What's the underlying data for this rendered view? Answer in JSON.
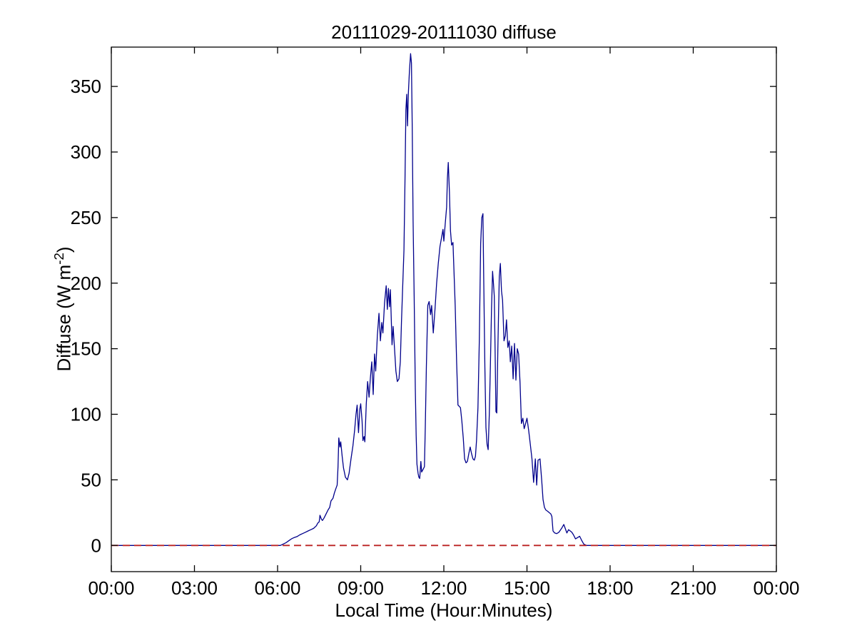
{
  "chart_data": {
    "type": "line",
    "title": "20111029-20111030 diffuse",
    "xlabel": "Local Time (Hour:Minutes)",
    "ylabel": "Diffuse (W m-2)",
    "ylabel_parts": {
      "main": "Diffuse (W m",
      "sup": "-2",
      "end": ")"
    },
    "xlim": [
      0,
      24
    ],
    "ylim": [
      -20,
      380
    ],
    "x_ticks_hours": [
      0,
      3,
      6,
      9,
      12,
      15,
      18,
      21,
      24
    ],
    "x_tick_labels": [
      "00:00",
      "03:00",
      "06:00",
      "09:00",
      "12:00",
      "15:00",
      "18:00",
      "21:00",
      "00:00"
    ],
    "y_ticks": [
      0,
      50,
      100,
      150,
      200,
      250,
      300,
      350
    ],
    "grid": false,
    "legend": "none",
    "colors": {
      "diffuse_line": "#00008B",
      "zero_reference_line": "#BB2222",
      "axis": "#000000",
      "background": "#FFFFFF"
    },
    "series": [
      {
        "name": "diffuse",
        "style": "solid",
        "color": "#00008B",
        "points": [
          [
            0,
            0
          ],
          [
            0.5,
            0
          ],
          [
            1,
            0
          ],
          [
            1.5,
            0
          ],
          [
            2,
            0
          ],
          [
            2.5,
            0
          ],
          [
            3,
            0
          ],
          [
            3.5,
            0
          ],
          [
            4,
            0
          ],
          [
            4.5,
            0
          ],
          [
            5,
            0
          ],
          [
            5.5,
            0
          ],
          [
            5.8,
            0
          ],
          [
            6.0,
            0
          ],
          [
            6.1,
            0
          ],
          [
            6.2,
            1
          ],
          [
            6.3,
            2
          ],
          [
            6.4,
            3.5
          ],
          [
            6.5,
            5
          ],
          [
            6.6,
            6
          ],
          [
            6.7,
            6.7
          ],
          [
            6.8,
            8
          ],
          [
            6.9,
            9
          ],
          [
            7.0,
            10
          ],
          [
            7.1,
            11
          ],
          [
            7.2,
            12
          ],
          [
            7.3,
            13
          ],
          [
            7.4,
            15
          ],
          [
            7.45,
            17
          ],
          [
            7.5,
            18
          ],
          [
            7.53,
            23
          ],
          [
            7.58,
            20
          ],
          [
            7.62,
            19
          ],
          [
            7.68,
            21
          ],
          [
            7.75,
            24
          ],
          [
            7.82,
            27
          ],
          [
            7.88,
            29
          ],
          [
            7.93,
            34
          ],
          [
            8.0,
            36
          ],
          [
            8.05,
            40
          ],
          [
            8.1,
            43
          ],
          [
            8.15,
            46
          ],
          [
            8.18,
            60
          ],
          [
            8.21,
            82
          ],
          [
            8.25,
            75
          ],
          [
            8.28,
            79
          ],
          [
            8.33,
            68
          ],
          [
            8.38,
            59
          ],
          [
            8.45,
            52
          ],
          [
            8.52,
            50
          ],
          [
            8.58,
            55
          ],
          [
            8.65,
            66
          ],
          [
            8.72,
            76
          ],
          [
            8.78,
            88
          ],
          [
            8.83,
            100
          ],
          [
            8.87,
            107
          ],
          [
            8.92,
            86
          ],
          [
            8.97,
            104
          ],
          [
            9.0,
            108
          ],
          [
            9.05,
            95
          ],
          [
            9.08,
            80
          ],
          [
            9.12,
            83
          ],
          [
            9.15,
            79
          ],
          [
            9.2,
            108
          ],
          [
            9.25,
            125
          ],
          [
            9.3,
            113
          ],
          [
            9.35,
            128
          ],
          [
            9.4,
            140
          ],
          [
            9.45,
            115
          ],
          [
            9.5,
            146
          ],
          [
            9.54,
            133
          ],
          [
            9.6,
            160
          ],
          [
            9.66,
            177
          ],
          [
            9.71,
            156
          ],
          [
            9.76,
            170
          ],
          [
            9.8,
            162
          ],
          [
            9.86,
            185
          ],
          [
            9.92,
            198
          ],
          [
            9.96,
            180
          ],
          [
            10.0,
            196
          ],
          [
            10.04,
            182
          ],
          [
            10.07,
            195
          ],
          [
            10.13,
            153
          ],
          [
            10.17,
            167
          ],
          [
            10.22,
            150
          ],
          [
            10.27,
            133
          ],
          [
            10.32,
            125
          ],
          [
            10.38,
            127
          ],
          [
            10.43,
            140
          ],
          [
            10.47,
            170
          ],
          [
            10.52,
            200
          ],
          [
            10.56,
            225
          ],
          [
            10.6,
            280
          ],
          [
            10.63,
            332
          ],
          [
            10.66,
            344
          ],
          [
            10.69,
            320
          ],
          [
            10.72,
            345
          ],
          [
            10.76,
            362
          ],
          [
            10.8,
            375
          ],
          [
            10.83,
            368
          ],
          [
            10.86,
            319
          ],
          [
            10.89,
            248
          ],
          [
            10.93,
            190
          ],
          [
            10.97,
            120
          ],
          [
            11.0,
            84
          ],
          [
            11.03,
            62
          ],
          [
            11.07,
            55
          ],
          [
            11.1,
            52
          ],
          [
            11.13,
            51
          ],
          [
            11.17,
            64
          ],
          [
            11.2,
            56
          ],
          [
            11.25,
            58
          ],
          [
            11.3,
            60
          ],
          [
            11.33,
            90
          ],
          [
            11.37,
            136
          ],
          [
            11.42,
            183
          ],
          [
            11.47,
            186
          ],
          [
            11.52,
            176
          ],
          [
            11.56,
            183
          ],
          [
            11.62,
            162
          ],
          [
            11.68,
            180
          ],
          [
            11.74,
            200
          ],
          [
            11.8,
            215
          ],
          [
            11.86,
            228
          ],
          [
            11.92,
            235
          ],
          [
            11.97,
            241
          ],
          [
            12.0,
            232
          ],
          [
            12.05,
            245
          ],
          [
            12.1,
            258
          ],
          [
            12.13,
            280
          ],
          [
            12.16,
            292
          ],
          [
            12.2,
            270
          ],
          [
            12.24,
            240
          ],
          [
            12.28,
            229
          ],
          [
            12.33,
            231
          ],
          [
            12.38,
            200
          ],
          [
            12.41,
            183
          ],
          [
            12.46,
            140
          ],
          [
            12.51,
            107
          ],
          [
            12.56,
            106
          ],
          [
            12.6,
            105
          ],
          [
            12.65,
            95
          ],
          [
            12.7,
            82
          ],
          [
            12.75,
            66
          ],
          [
            12.8,
            63
          ],
          [
            12.85,
            64
          ],
          [
            12.9,
            70
          ],
          [
            12.95,
            75
          ],
          [
            13.0,
            70
          ],
          [
            13.05,
            66
          ],
          [
            13.1,
            65
          ],
          [
            13.14,
            68
          ],
          [
            13.18,
            80
          ],
          [
            13.23,
            105
          ],
          [
            13.28,
            156
          ],
          [
            13.33,
            230
          ],
          [
            13.37,
            250
          ],
          [
            13.41,
            253
          ],
          [
            13.44,
            203
          ],
          [
            13.48,
            136
          ],
          [
            13.52,
            90
          ],
          [
            13.56,
            77
          ],
          [
            13.6,
            73
          ],
          [
            13.64,
            100
          ],
          [
            13.68,
            136
          ],
          [
            13.72,
            180
          ],
          [
            13.76,
            209
          ],
          [
            13.79,
            200
          ],
          [
            13.82,
            190
          ],
          [
            13.85,
            150
          ],
          [
            13.88,
            102
          ],
          [
            13.91,
            101
          ],
          [
            13.95,
            150
          ],
          [
            14.0,
            205
          ],
          [
            14.04,
            215
          ],
          [
            14.08,
            194
          ],
          [
            14.12,
            187
          ],
          [
            14.17,
            156
          ],
          [
            14.22,
            160
          ],
          [
            14.26,
            172
          ],
          [
            14.31,
            151
          ],
          [
            14.36,
            156
          ],
          [
            14.4,
            140
          ],
          [
            14.45,
            152
          ],
          [
            14.5,
            127
          ],
          [
            14.55,
            154
          ],
          [
            14.6,
            126
          ],
          [
            14.65,
            150
          ],
          [
            14.7,
            146
          ],
          [
            14.75,
            124
          ],
          [
            14.8,
            93
          ],
          [
            14.85,
            97
          ],
          [
            14.9,
            89
          ],
          [
            14.95,
            93
          ],
          [
            15.0,
            97
          ],
          [
            15.06,
            88
          ],
          [
            15.12,
            77
          ],
          [
            15.18,
            66
          ],
          [
            15.24,
            48
          ],
          [
            15.3,
            66
          ],
          [
            15.35,
            46
          ],
          [
            15.4,
            65
          ],
          [
            15.47,
            66
          ],
          [
            15.53,
            50
          ],
          [
            15.58,
            35
          ],
          [
            15.63,
            29
          ],
          [
            15.68,
            27
          ],
          [
            15.75,
            26
          ],
          [
            15.8,
            25
          ],
          [
            15.86,
            24
          ],
          [
            15.9,
            22
          ],
          [
            15.94,
            11
          ],
          [
            16.0,
            9.5
          ],
          [
            16.07,
            9
          ],
          [
            16.15,
            10
          ],
          [
            16.25,
            13
          ],
          [
            16.33,
            16
          ],
          [
            16.38,
            13
          ],
          [
            16.44,
            9.5
          ],
          [
            16.5,
            12
          ],
          [
            16.56,
            11
          ],
          [
            16.62,
            10
          ],
          [
            16.68,
            8
          ],
          [
            16.75,
            5
          ],
          [
            16.83,
            6
          ],
          [
            16.9,
            7
          ],
          [
            16.97,
            4
          ],
          [
            17.05,
            1
          ],
          [
            17.15,
            0
          ],
          [
            17.5,
            0
          ],
          [
            18,
            0
          ],
          [
            18.5,
            0
          ],
          [
            19,
            0
          ],
          [
            19.5,
            0
          ],
          [
            20,
            0
          ],
          [
            20.5,
            0
          ],
          [
            21,
            0
          ],
          [
            21.5,
            0
          ],
          [
            22,
            0
          ],
          [
            22.5,
            0
          ],
          [
            23,
            0
          ],
          [
            23.5,
            0
          ],
          [
            24,
            0
          ]
        ]
      },
      {
        "name": "zero-reference",
        "style": "dashed",
        "color": "#BB2222",
        "points": [
          [
            0,
            0
          ],
          [
            24,
            0
          ]
        ]
      }
    ]
  }
}
